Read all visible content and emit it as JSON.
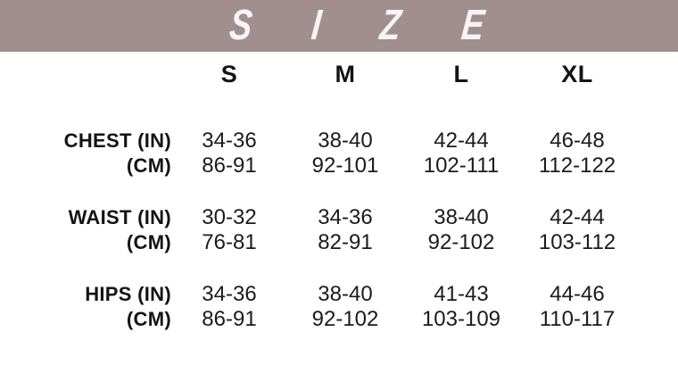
{
  "banner": {
    "title": "SIZE",
    "letters": [
      "S",
      "I",
      "Z",
      "E"
    ],
    "background_color": "#A18F90",
    "text_color": "#F6F4F4"
  },
  "size_table": {
    "columns": [
      "S",
      "M",
      "L",
      "XL"
    ],
    "rows": [
      {
        "measurement": "CHEST",
        "label_in": "CHEST (IN)",
        "label_cm": "(CM)",
        "values_in": [
          "34-36",
          "38-40",
          "42-44",
          "46-48"
        ],
        "values_cm": [
          "86-91",
          "92-101",
          "102-111",
          "112-122"
        ]
      },
      {
        "measurement": "WAIST",
        "label_in": "WAIST (IN)",
        "label_cm": "(CM)",
        "values_in": [
          "30-32",
          "34-36",
          "38-40",
          "42-44"
        ],
        "values_cm": [
          "76-81",
          "82-91",
          "92-102",
          "103-112"
        ]
      },
      {
        "measurement": "HIPS",
        "label_in": "HIPS (IN)",
        "label_cm": "(CM)",
        "values_in": [
          "34-36",
          "38-40",
          "41-43",
          "44-46"
        ],
        "values_cm": [
          "86-91",
          "92-102",
          "103-109",
          "110-117"
        ]
      }
    ]
  }
}
